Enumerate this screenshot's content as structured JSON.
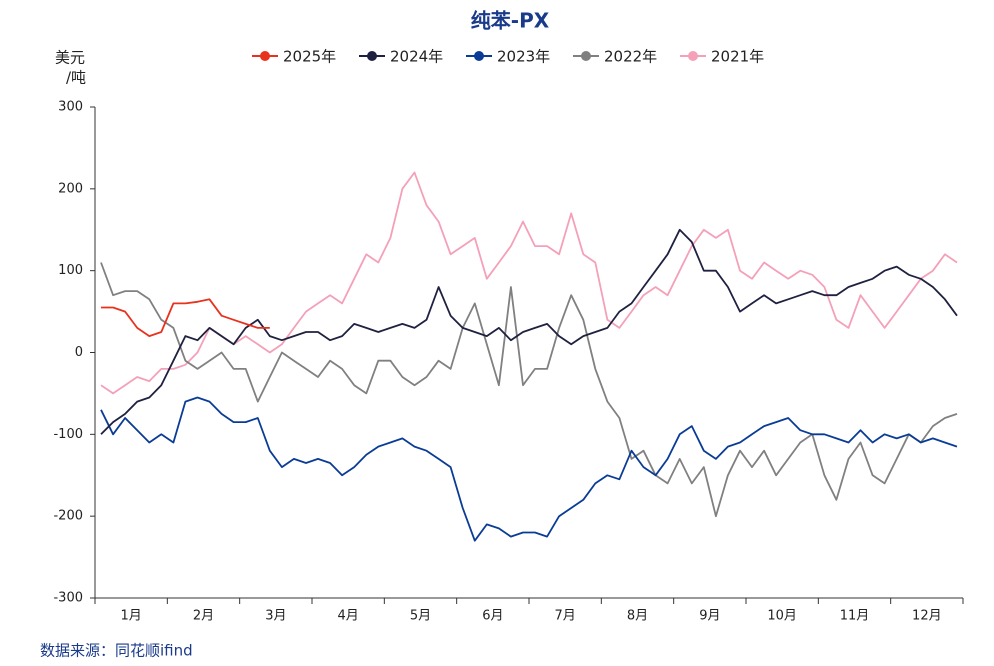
{
  "chart_data": {
    "type": "line",
    "title": "纯苯-PX",
    "y_label_line1": "美元",
    "y_label_line2": "/吨",
    "source": "数据来源：同花顺ifind",
    "categories": [
      null,
      null,
      null,
      "1月",
      null,
      null,
      null,
      null,
      null,
      "2月",
      null,
      null,
      null,
      null,
      null,
      "3月",
      null,
      null,
      null,
      null,
      null,
      "4月",
      null,
      null,
      null,
      null,
      null,
      "5月",
      null,
      null,
      null,
      null,
      null,
      "6月",
      null,
      null,
      null,
      null,
      null,
      "7月",
      null,
      null,
      null,
      null,
      null,
      "8月",
      null,
      null,
      null,
      null,
      null,
      "9月",
      null,
      null,
      null,
      null,
      null,
      "10月",
      null,
      null,
      null,
      null,
      null,
      "11月",
      null,
      null,
      null,
      null,
      null,
      "12月",
      null,
      null
    ],
    "ylim": [
      -300,
      300
    ],
    "yticks": [
      -300,
      -200,
      -100,
      0,
      100,
      200,
      300
    ],
    "grid": false,
    "series": [
      {
        "name": "2025年",
        "color": "#e8321e",
        "values": [
          55,
          55,
          50,
          30,
          20,
          25,
          60,
          60,
          62,
          65,
          45,
          40,
          35,
          30,
          30,
          null,
          null,
          null,
          null,
          null,
          null,
          null,
          null,
          null,
          null,
          null,
          null,
          null,
          null,
          null,
          null,
          null,
          null,
          null,
          null,
          null,
          null,
          null,
          null,
          null,
          null,
          null,
          null,
          null,
          null,
          null,
          null,
          null,
          null,
          null,
          null,
          null,
          null,
          null,
          null,
          null,
          null,
          null,
          null,
          null,
          null,
          null,
          null,
          null,
          null,
          null,
          null,
          null,
          null,
          null,
          null,
          null
        ]
      },
      {
        "name": "2024年",
        "color": "#1f2140",
        "values": [
          -100,
          -85,
          -75,
          -60,
          -55,
          -40,
          -10,
          20,
          15,
          30,
          20,
          10,
          30,
          40,
          20,
          15,
          20,
          25,
          25,
          15,
          20,
          35,
          30,
          25,
          30,
          35,
          30,
          40,
          80,
          45,
          30,
          25,
          20,
          30,
          15,
          25,
          30,
          35,
          20,
          10,
          20,
          25,
          30,
          50,
          60,
          80,
          100,
          120,
          150,
          135,
          100,
          100,
          80,
          50,
          60,
          70,
          60,
          65,
          70,
          75,
          70,
          70,
          80,
          85,
          90,
          100,
          105,
          95,
          90,
          80,
          65,
          45
        ]
      },
      {
        "name": "2023年",
        "color": "#0a3c96",
        "values": [
          -70,
          -100,
          -80,
          -95,
          -110,
          -100,
          -110,
          -60,
          -55,
          -60,
          -75,
          -85,
          -85,
          -80,
          -120,
          -140,
          -130,
          -135,
          -130,
          -135,
          -150,
          -140,
          -125,
          -115,
          -110,
          -105,
          -115,
          -120,
          -130,
          -140,
          -190,
          -230,
          -210,
          -215,
          -225,
          -220,
          -220,
          -225,
          -200,
          -190,
          -180,
          -160,
          -150,
          -155,
          -120,
          -140,
          -150,
          -130,
          -100,
          -90,
          -120,
          -130,
          -115,
          -110,
          -100,
          -90,
          -85,
          -80,
          -95,
          -100,
          -100,
          -105,
          -110,
          -95,
          -110,
          -100,
          -105,
          -100,
          -110,
          -105,
          -110,
          -115
        ]
      },
      {
        "name": "2022年",
        "color": "#808080",
        "values": [
          110,
          70,
          75,
          75,
          65,
          40,
          30,
          -10,
          -20,
          -10,
          0,
          -20,
          -20,
          -60,
          -30,
          0,
          -10,
          -20,
          -30,
          -10,
          -20,
          -40,
          -50,
          -10,
          -10,
          -30,
          -40,
          -30,
          -10,
          -20,
          30,
          60,
          10,
          -40,
          80,
          -40,
          -20,
          -20,
          30,
          70,
          40,
          -20,
          -60,
          -80,
          -130,
          -120,
          -150,
          -160,
          -130,
          -160,
          -140,
          -200,
          -150,
          -120,
          -140,
          -120,
          -150,
          -130,
          -110,
          -100,
          -150,
          -180,
          -130,
          -110,
          -150,
          -160,
          -130,
          -100,
          -110,
          -90,
          -80,
          -75
        ]
      },
      {
        "name": "2021年",
        "color": "#f4a0b8",
        "values": [
          -40,
          -50,
          -40,
          -30,
          -35,
          -20,
          -20,
          -15,
          0,
          30,
          20,
          10,
          20,
          10,
          0,
          10,
          30,
          50,
          60,
          70,
          60,
          90,
          120,
          110,
          140,
          200,
          220,
          180,
          160,
          120,
          130,
          140,
          90,
          110,
          130,
          160,
          130,
          130,
          120,
          170,
          120,
          110,
          40,
          30,
          50,
          70,
          80,
          70,
          100,
          130,
          150,
          140,
          150,
          100,
          90,
          110,
          100,
          90,
          100,
          95,
          80,
          40,
          30,
          70,
          50,
          30,
          50,
          70,
          90,
          100,
          120,
          110
        ]
      }
    ]
  }
}
